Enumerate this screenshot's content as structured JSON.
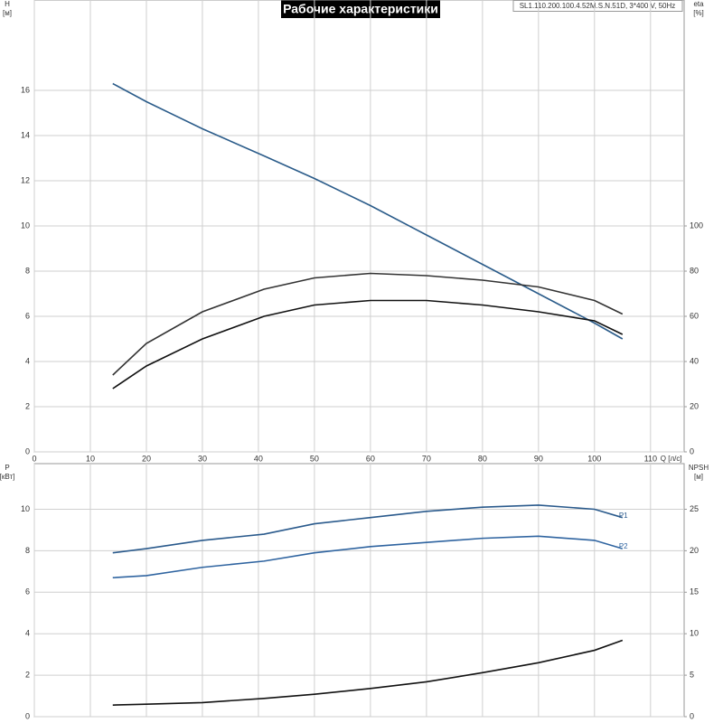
{
  "chart_data": [
    {
      "type": "line",
      "title": "Рабочие характеристики",
      "subtitle": "SL1.110.200.100.4.52M.S.N.51D, 3*400 V, 50Hz",
      "xlabel": "Q [л/с]",
      "ylabel": "H",
      "yunit": "[м]",
      "y2label": "eta",
      "y2unit": "[%]",
      "xlim": [
        0,
        116
      ],
      "xticks": [
        0,
        10,
        20,
        30,
        40,
        50,
        60,
        70,
        80,
        90,
        100,
        110
      ],
      "ylim": [
        0,
        20
      ],
      "yticks": [
        0,
        2,
        4,
        6,
        8,
        10,
        12,
        14,
        16
      ],
      "y2lim": [
        0,
        200
      ],
      "y2ticks": [
        0,
        20,
        40,
        60,
        80,
        100
      ],
      "grid": true,
      "x": [
        14,
        20,
        30,
        41,
        50,
        60,
        70,
        80,
        90,
        100,
        105
      ],
      "series": [
        {
          "color": "#2b5c8a",
          "values": [
            16.3,
            15.5,
            14.3,
            13.1,
            12.1,
            10.9,
            9.6,
            8.3,
            7.0,
            5.7,
            5.0
          ]
        },
        {
          "color": "#333333",
          "axis": "y2",
          "values": [
            34,
            48,
            62,
            72,
            77,
            79,
            78,
            76,
            73,
            67,
            61
          ]
        },
        {
          "color": "#111111",
          "axis": "y2",
          "values": [
            28,
            38,
            50,
            60,
            65,
            67,
            67,
            65,
            62,
            58,
            52
          ]
        }
      ]
    },
    {
      "type": "line",
      "ylabel": "P",
      "yunit": "[кВт]",
      "y2label": "NPSH",
      "y2unit": "[м]",
      "xlim": [
        0,
        116
      ],
      "ylim": [
        0,
        12.2
      ],
      "yticks": [
        0,
        2,
        4,
        6,
        8,
        10
      ],
      "y2lim": [
        0,
        30.5
      ],
      "y2ticks": [
        0,
        5,
        10,
        15,
        20,
        25
      ],
      "grid": true,
      "x": [
        14,
        20,
        30,
        41,
        50,
        60,
        70,
        80,
        90,
        100,
        105
      ],
      "series": [
        {
          "name": "P1",
          "color": "#2a5a8c",
          "values": [
            7.9,
            8.1,
            8.5,
            8.8,
            9.3,
            9.6,
            9.9,
            10.1,
            10.2,
            10.0,
            9.6
          ]
        },
        {
          "name": "P2",
          "color": "#2f64a0",
          "values": [
            6.7,
            6.8,
            7.2,
            7.5,
            7.9,
            8.2,
            8.4,
            8.6,
            8.7,
            8.5,
            8.1
          ]
        },
        {
          "color": "#111111",
          "axis": "y2",
          "values": [
            1.4,
            1.5,
            1.7,
            2.2,
            2.7,
            3.4,
            4.2,
            5.3,
            6.5,
            8.0,
            9.2
          ]
        }
      ]
    }
  ]
}
